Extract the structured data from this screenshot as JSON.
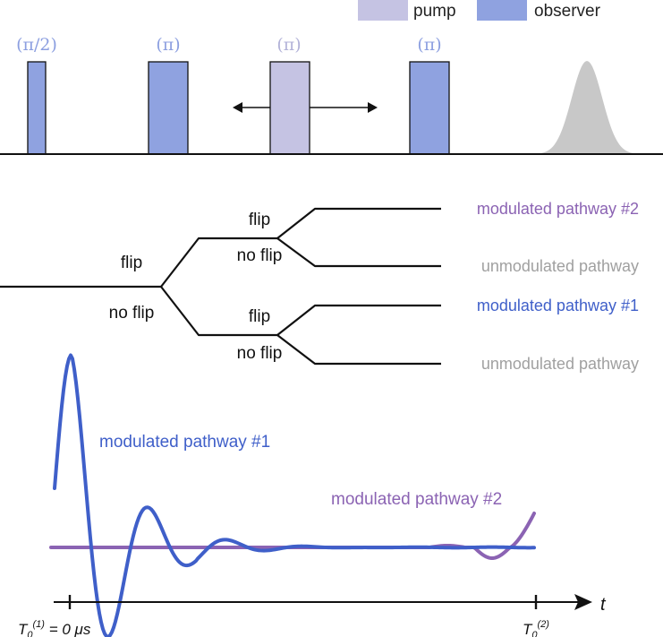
{
  "legend": {
    "items": [
      {
        "label": "pump",
        "color": "#c5c3e3"
      },
      {
        "label": "observer",
        "color": "#8fa2e0"
      }
    ]
  },
  "pulse_sequence": {
    "labels": [
      "(π/2)",
      "(π)",
      "(π)",
      "(π)"
    ],
    "observer_color": "#8fa2e0",
    "pump_color": "#c5c3e3",
    "label_color_observer": "#8c9fe0",
    "label_color_pump": "#b2b2d8",
    "echo_color": "#c8c8c8"
  },
  "tree": {
    "first_branch": {
      "upper": "flip",
      "lower": "no flip"
    },
    "upper_branch": {
      "upper": "flip",
      "lower": "no flip"
    },
    "lower_branch": {
      "upper": "flip",
      "lower": "no flip"
    },
    "outcomes": [
      {
        "label": "modulated pathway #2",
        "color": "#8b63b3"
      },
      {
        "label": "unmodulated pathway",
        "color": "#a0a0a0"
      },
      {
        "label": "modulated pathway #1",
        "color": "#3f5fc9"
      },
      {
        "label": "unmodulated pathway",
        "color": "#a0a0a0"
      }
    ]
  },
  "signal_plot": {
    "curve1_label": "modulated pathway #1",
    "curve1_color": "#3f5fc9",
    "curve2_label": "modulated pathway #2",
    "curve2_color": "#8b63b3",
    "axis_label": "t",
    "tick_left": {
      "base": "T",
      "sub": "0",
      "sup": "(1)",
      "suffix": " = 0 μs"
    },
    "tick_right": {
      "base": "T",
      "sub": "0",
      "sup": "(2)",
      "suffix": ""
    }
  }
}
